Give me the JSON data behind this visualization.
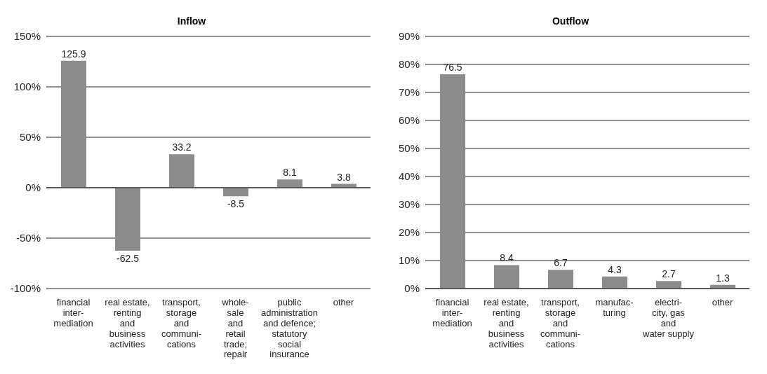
{
  "chart_data": [
    {
      "type": "bar",
      "title": "Inflow",
      "categories": [
        "financial\ninter-\nmediation",
        "real estate,\nrenting\nand\nbusiness\nactivities",
        "transport,\nstorage\nand\ncommuni-\ncations",
        "whole-\nsale\nand\nretail\ntrade;\nrepair",
        "public\nadministration\nand defence;\nstatutory\nsocial\ninsurance",
        "other"
      ],
      "values": [
        125.9,
        -62.5,
        33.2,
        -8.5,
        8.1,
        3.8
      ],
      "color": "#8c8c8c",
      "ylim": [
        -100,
        150
      ],
      "yticks": [
        {
          "value": -100,
          "label": "-100%"
        },
        {
          "value": -50,
          "label": "-50%"
        },
        {
          "value": 0,
          "label": "0%"
        },
        {
          "value": 50,
          "label": "50%"
        },
        {
          "value": 100,
          "label": "100%"
        },
        {
          "value": 150,
          "label": "150%"
        }
      ],
      "grid": "y",
      "data_labels": true
    },
    {
      "type": "bar",
      "title": "Outflow",
      "categories": [
        "financial\ninter-\nmediation",
        "real estate,\nrenting\nand\nbusiness\nactivities",
        "transport,\nstorage\nand\ncommuni-\ncations",
        "manufac-\nturing",
        "electri-\ncity, gas\nand\nwater supply",
        "other"
      ],
      "values": [
        76.5,
        8.4,
        6.7,
        4.3,
        2.7,
        1.3
      ],
      "color": "#8c8c8c",
      "ylim": [
        0,
        90
      ],
      "yticks": [
        {
          "value": 0,
          "label": "0%"
        },
        {
          "value": 10,
          "label": "10%"
        },
        {
          "value": 20,
          "label": "20%"
        },
        {
          "value": 30,
          "label": "30%"
        },
        {
          "value": 40,
          "label": "40%"
        },
        {
          "value": 50,
          "label": "50%"
        },
        {
          "value": 60,
          "label": "60%"
        },
        {
          "value": 70,
          "label": "70%"
        },
        {
          "value": 80,
          "label": "80%"
        },
        {
          "value": 90,
          "label": "90%"
        }
      ],
      "grid": "y",
      "data_labels": true
    }
  ]
}
